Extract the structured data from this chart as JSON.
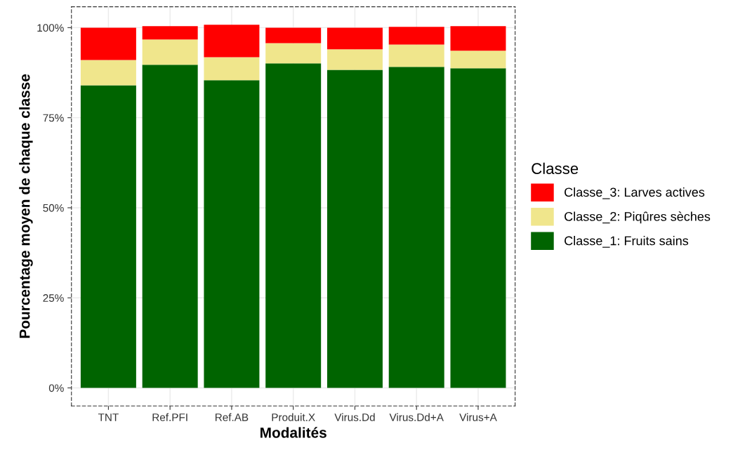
{
  "chart_data": {
    "type": "bar",
    "stacked": true,
    "xlabel": "Modalités",
    "ylabel": "Pourcentage moyen de chaque classe",
    "legend_title": "Classe",
    "legend": "right",
    "grid": true,
    "categories": [
      "TNT",
      "Ref.PFI",
      "Ref.AB",
      "Produit.X",
      "Virus.Dd",
      "Virus.Dd+A",
      "Virus+A"
    ],
    "ylim": [
      -5,
      105.8
    ],
    "yticks": [
      {
        "value": 0,
        "label": "0%"
      },
      {
        "value": 25,
        "label": "25%"
      },
      {
        "value": 50,
        "label": "50%"
      },
      {
        "value": 75,
        "label": "75%"
      },
      {
        "value": 100,
        "label": "100%"
      }
    ],
    "series": [
      {
        "name": "Classe_1: Fruits sains",
        "color": "#006400",
        "values": [
          84.0,
          89.7,
          85.4,
          90.1,
          88.3,
          89.1,
          88.7
        ]
      },
      {
        "name": "Classe_2: Piqûres sèches",
        "color": "#f0e68c",
        "values": [
          7.0,
          7.0,
          6.4,
          5.6,
          5.7,
          6.2,
          4.9
        ]
      },
      {
        "name": "Classe_3: Larves actives",
        "color": "#ff0000",
        "values": [
          9.0,
          3.7,
          9.0,
          4.3,
          6.0,
          4.9,
          6.8
        ]
      }
    ]
  }
}
